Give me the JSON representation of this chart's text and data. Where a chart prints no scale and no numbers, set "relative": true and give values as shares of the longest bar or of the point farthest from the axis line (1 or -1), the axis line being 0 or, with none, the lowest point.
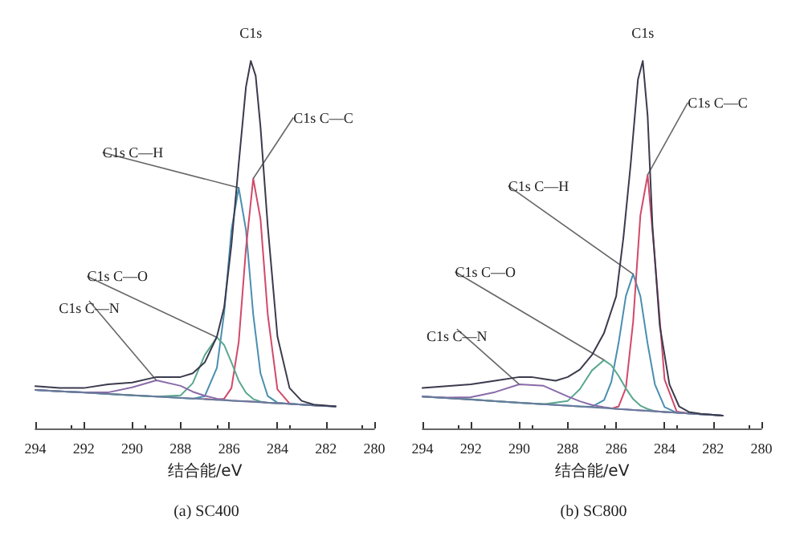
{
  "chart_data": [
    {
      "type": "line",
      "title": "(a) SC400",
      "xlabel": "结合能/eV",
      "relative": true,
      "xlim": [
        294,
        280
      ],
      "xticks": [
        294,
        292,
        290,
        288,
        286,
        284,
        282,
        280
      ],
      "tick_labels": "x",
      "grid": false,
      "legend": false,
      "marker": "none",
      "series": [
        {
          "name": "C1s",
          "color": "#3b3b4e",
          "x": [
            294,
            293,
            292,
            291,
            290,
            289,
            288,
            287.5,
            287,
            286.5,
            286.2,
            285.9,
            285.6,
            285.3,
            285.1,
            284.9,
            284.7,
            284.4,
            284,
            283.5,
            283,
            282.5,
            282,
            281.6
          ],
          "values": [
            0.115,
            0.11,
            0.11,
            0.12,
            0.125,
            0.14,
            0.14,
            0.15,
            0.18,
            0.25,
            0.33,
            0.5,
            0.72,
            0.93,
            1,
            0.96,
            0.82,
            0.55,
            0.25,
            0.11,
            0.075,
            0.065,
            0.062,
            0.06
          ]
        },
        {
          "name": "C1s C—H",
          "color": "#4a8fb0",
          "x": [
            294,
            293,
            292,
            291,
            290,
            289,
            288,
            287.5,
            287,
            286.5,
            286.2,
            285.9,
            285.6,
            285.3,
            285,
            284.7,
            284.4,
            284,
            283.5,
            283,
            282.5,
            282,
            281.6
          ],
          "values": [
            0.105,
            0.101,
            0.098,
            0.094,
            0.09,
            0.087,
            0.083,
            0.081,
            0.088,
            0.165,
            0.315,
            0.54,
            0.655,
            0.54,
            0.31,
            0.15,
            0.088,
            0.07,
            0.067,
            0.065,
            0.063,
            0.061,
            0.06
          ]
        },
        {
          "name": "C1s C—C",
          "color": "#d04a6a",
          "x": [
            287,
            286.5,
            286.2,
            285.9,
            285.6,
            285.3,
            285,
            284.7,
            284.4,
            284,
            283.5
          ],
          "values": [
            0.08,
            0.078,
            0.081,
            0.11,
            0.235,
            0.49,
            0.68,
            0.57,
            0.31,
            0.106,
            0.068
          ]
        },
        {
          "name": "C1s C—O",
          "color": "#5aa890",
          "x": [
            294,
            293,
            292,
            291,
            290,
            289,
            288,
            287.5,
            287,
            286.5,
            286.2,
            285.9,
            285.6,
            285.3,
            285,
            284.7,
            284.4,
            284,
            283.5,
            283,
            282.5,
            282,
            281.6
          ],
          "values": [
            0.105,
            0.101,
            0.098,
            0.094,
            0.09,
            0.087,
            0.09,
            0.123,
            0.2,
            0.248,
            0.227,
            0.18,
            0.13,
            0.097,
            0.08,
            0.073,
            0.07,
            0.069,
            0.067,
            0.065,
            0.063,
            0.061,
            0.06
          ]
        },
        {
          "name": "C1s C—N",
          "color": "#8a6aa8",
          "x": [
            294,
            293,
            292,
            291,
            290,
            289,
            288,
            287.5,
            287,
            286.5,
            286.2,
            285.9,
            285.6,
            285.3,
            285,
            284.7,
            284.4,
            284,
            283.5,
            283,
            282.5,
            282,
            281.6
          ],
          "values": [
            0.105,
            0.101,
            0.098,
            0.098,
            0.112,
            0.131,
            0.116,
            0.1,
            0.089,
            0.081,
            0.078,
            0.076,
            0.075,
            0.074,
            0.073,
            0.072,
            0.07,
            0.069,
            0.067,
            0.065,
            0.063,
            0.061,
            0.06
          ]
        },
        {
          "color": "#6a7a9a",
          "x": [
            294,
            281.6
          ],
          "values": [
            0.105,
            0.06
          ]
        }
      ]
    },
    {
      "type": "line",
      "title": "(b) SC800",
      "xlabel": "结合能/eV",
      "relative": true,
      "xlim": [
        294,
        280
      ],
      "xticks": [
        294,
        292,
        290,
        288,
        286,
        284,
        282,
        280
      ],
      "tick_labels": "x",
      "grid": false,
      "legend": false,
      "marker": "none",
      "series": [
        {
          "name": "C1s",
          "color": "#3b3b4e",
          "x": [
            294,
            293,
            292,
            291,
            290,
            289.5,
            289,
            288.5,
            288,
            287.5,
            287,
            286.5,
            286,
            285.7,
            285.4,
            285.1,
            284.9,
            284.7,
            284.5,
            284.2,
            283.8,
            283.4,
            283,
            282.5,
            282,
            281.6
          ],
          "values": [
            0.11,
            0.115,
            0.12,
            0.13,
            0.14,
            0.14,
            0.135,
            0.13,
            0.14,
            0.16,
            0.2,
            0.26,
            0.36,
            0.52,
            0.72,
            0.95,
            1,
            0.85,
            0.55,
            0.28,
            0.12,
            0.06,
            0.045,
            0.04,
            0.037,
            0.035
          ]
        },
        {
          "name": "C1s C—H",
          "color": "#4a8fb0",
          "x": [
            294,
            293,
            292,
            291,
            290,
            289,
            288,
            287.5,
            287,
            286.5,
            286.2,
            285.9,
            285.6,
            285.3,
            285,
            284.7,
            284.4,
            284,
            283.5,
            283,
            282.5,
            282,
            281.6
          ],
          "values": [
            0.087,
            0.083,
            0.079,
            0.074,
            0.07,
            0.066,
            0.062,
            0.06,
            0.059,
            0.077,
            0.127,
            0.233,
            0.36,
            0.42,
            0.36,
            0.23,
            0.12,
            0.058,
            0.043,
            0.041,
            0.039,
            0.037,
            0.035
          ]
        },
        {
          "name": "C1s C—C",
          "color": "#d04a6a",
          "x": [
            286.2,
            285.9,
            285.6,
            285.3,
            285,
            284.7,
            284.4,
            284,
            283.5,
            283
          ],
          "values": [
            0.054,
            0.06,
            0.11,
            0.29,
            0.58,
            0.69,
            0.46,
            0.133,
            0.046,
            0.041
          ]
        },
        {
          "name": "C1s C—O",
          "color": "#5aa890",
          "x": [
            294,
            293,
            292,
            291,
            290,
            289,
            288,
            287.5,
            287,
            286.5,
            286.2,
            285.9,
            285.6,
            285.3,
            285,
            284.7,
            284.4,
            284,
            283.5,
            283,
            282.5,
            282,
            281.6
          ],
          "values": [
            0.087,
            0.083,
            0.079,
            0.074,
            0.07,
            0.066,
            0.075,
            0.107,
            0.158,
            0.186,
            0.172,
            0.143,
            0.109,
            0.08,
            0.062,
            0.053,
            0.047,
            0.045,
            0.043,
            0.041,
            0.039,
            0.037,
            0.035
          ]
        },
        {
          "name": "C1s C—N",
          "color": "#8a6aa8",
          "x": [
            294,
            293,
            292,
            291,
            290,
            289,
            288,
            287.5,
            287,
            286.5,
            286.2,
            285.9,
            285.6,
            285.3,
            285,
            284.7,
            284.4,
            284,
            283.5,
            283,
            282.5,
            282,
            281.6
          ],
          "values": [
            0.087,
            0.084,
            0.085,
            0.099,
            0.12,
            0.116,
            0.087,
            0.074,
            0.064,
            0.058,
            0.055,
            0.053,
            0.052,
            0.05,
            0.049,
            0.048,
            0.047,
            0.045,
            0.043,
            0.041,
            0.039,
            0.037,
            0.035
          ]
        },
        {
          "color": "#6a7a9a",
          "x": [
            294,
            281.6
          ],
          "values": [
            0.087,
            0.035
          ]
        }
      ]
    }
  ]
}
